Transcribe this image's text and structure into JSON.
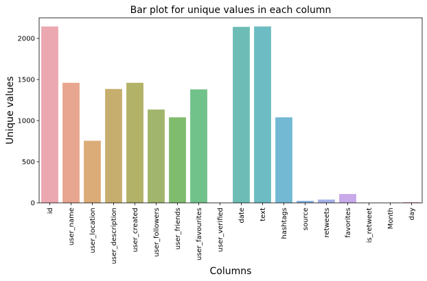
{
  "chart_data": {
    "type": "bar",
    "title": "Bar plot for unique values in each column",
    "xlabel": "Columns",
    "ylabel": "Unique values",
    "ylim": [
      0,
      2250
    ],
    "yticks": [
      0,
      500,
      1000,
      1500,
      2000
    ],
    "ytick_labels": [
      "0",
      "500",
      "1000",
      "1500",
      "2000"
    ],
    "grid": false,
    "categories": [
      "id",
      "user_name",
      "user_location",
      "user_description",
      "user_created",
      "user_followers",
      "user_friends",
      "user_favourites",
      "user_verified",
      "date",
      "text",
      "hashtags",
      "source",
      "retweets",
      "favorites",
      "is_retweet",
      "Month",
      "day"
    ],
    "values": [
      2145,
      1460,
      755,
      1385,
      1460,
      1135,
      1040,
      1380,
      2,
      2140,
      2145,
      1040,
      25,
      40,
      108,
      1,
      2,
      8
    ],
    "colors": [
      "#eba8b1",
      "#e8a58f",
      "#dbac78",
      "#c6ae6e",
      "#b2b269",
      "#a1b56c",
      "#7fbc6d",
      "#71c18a",
      "#6fc1a4",
      "#6dbdb6",
      "#6ebcc3",
      "#73b9d4",
      "#88b3e0",
      "#a4b0e6",
      "#c8a9e9",
      "#dea5e5",
      "#e9a5d2",
      "#ec9fbe"
    ]
  }
}
